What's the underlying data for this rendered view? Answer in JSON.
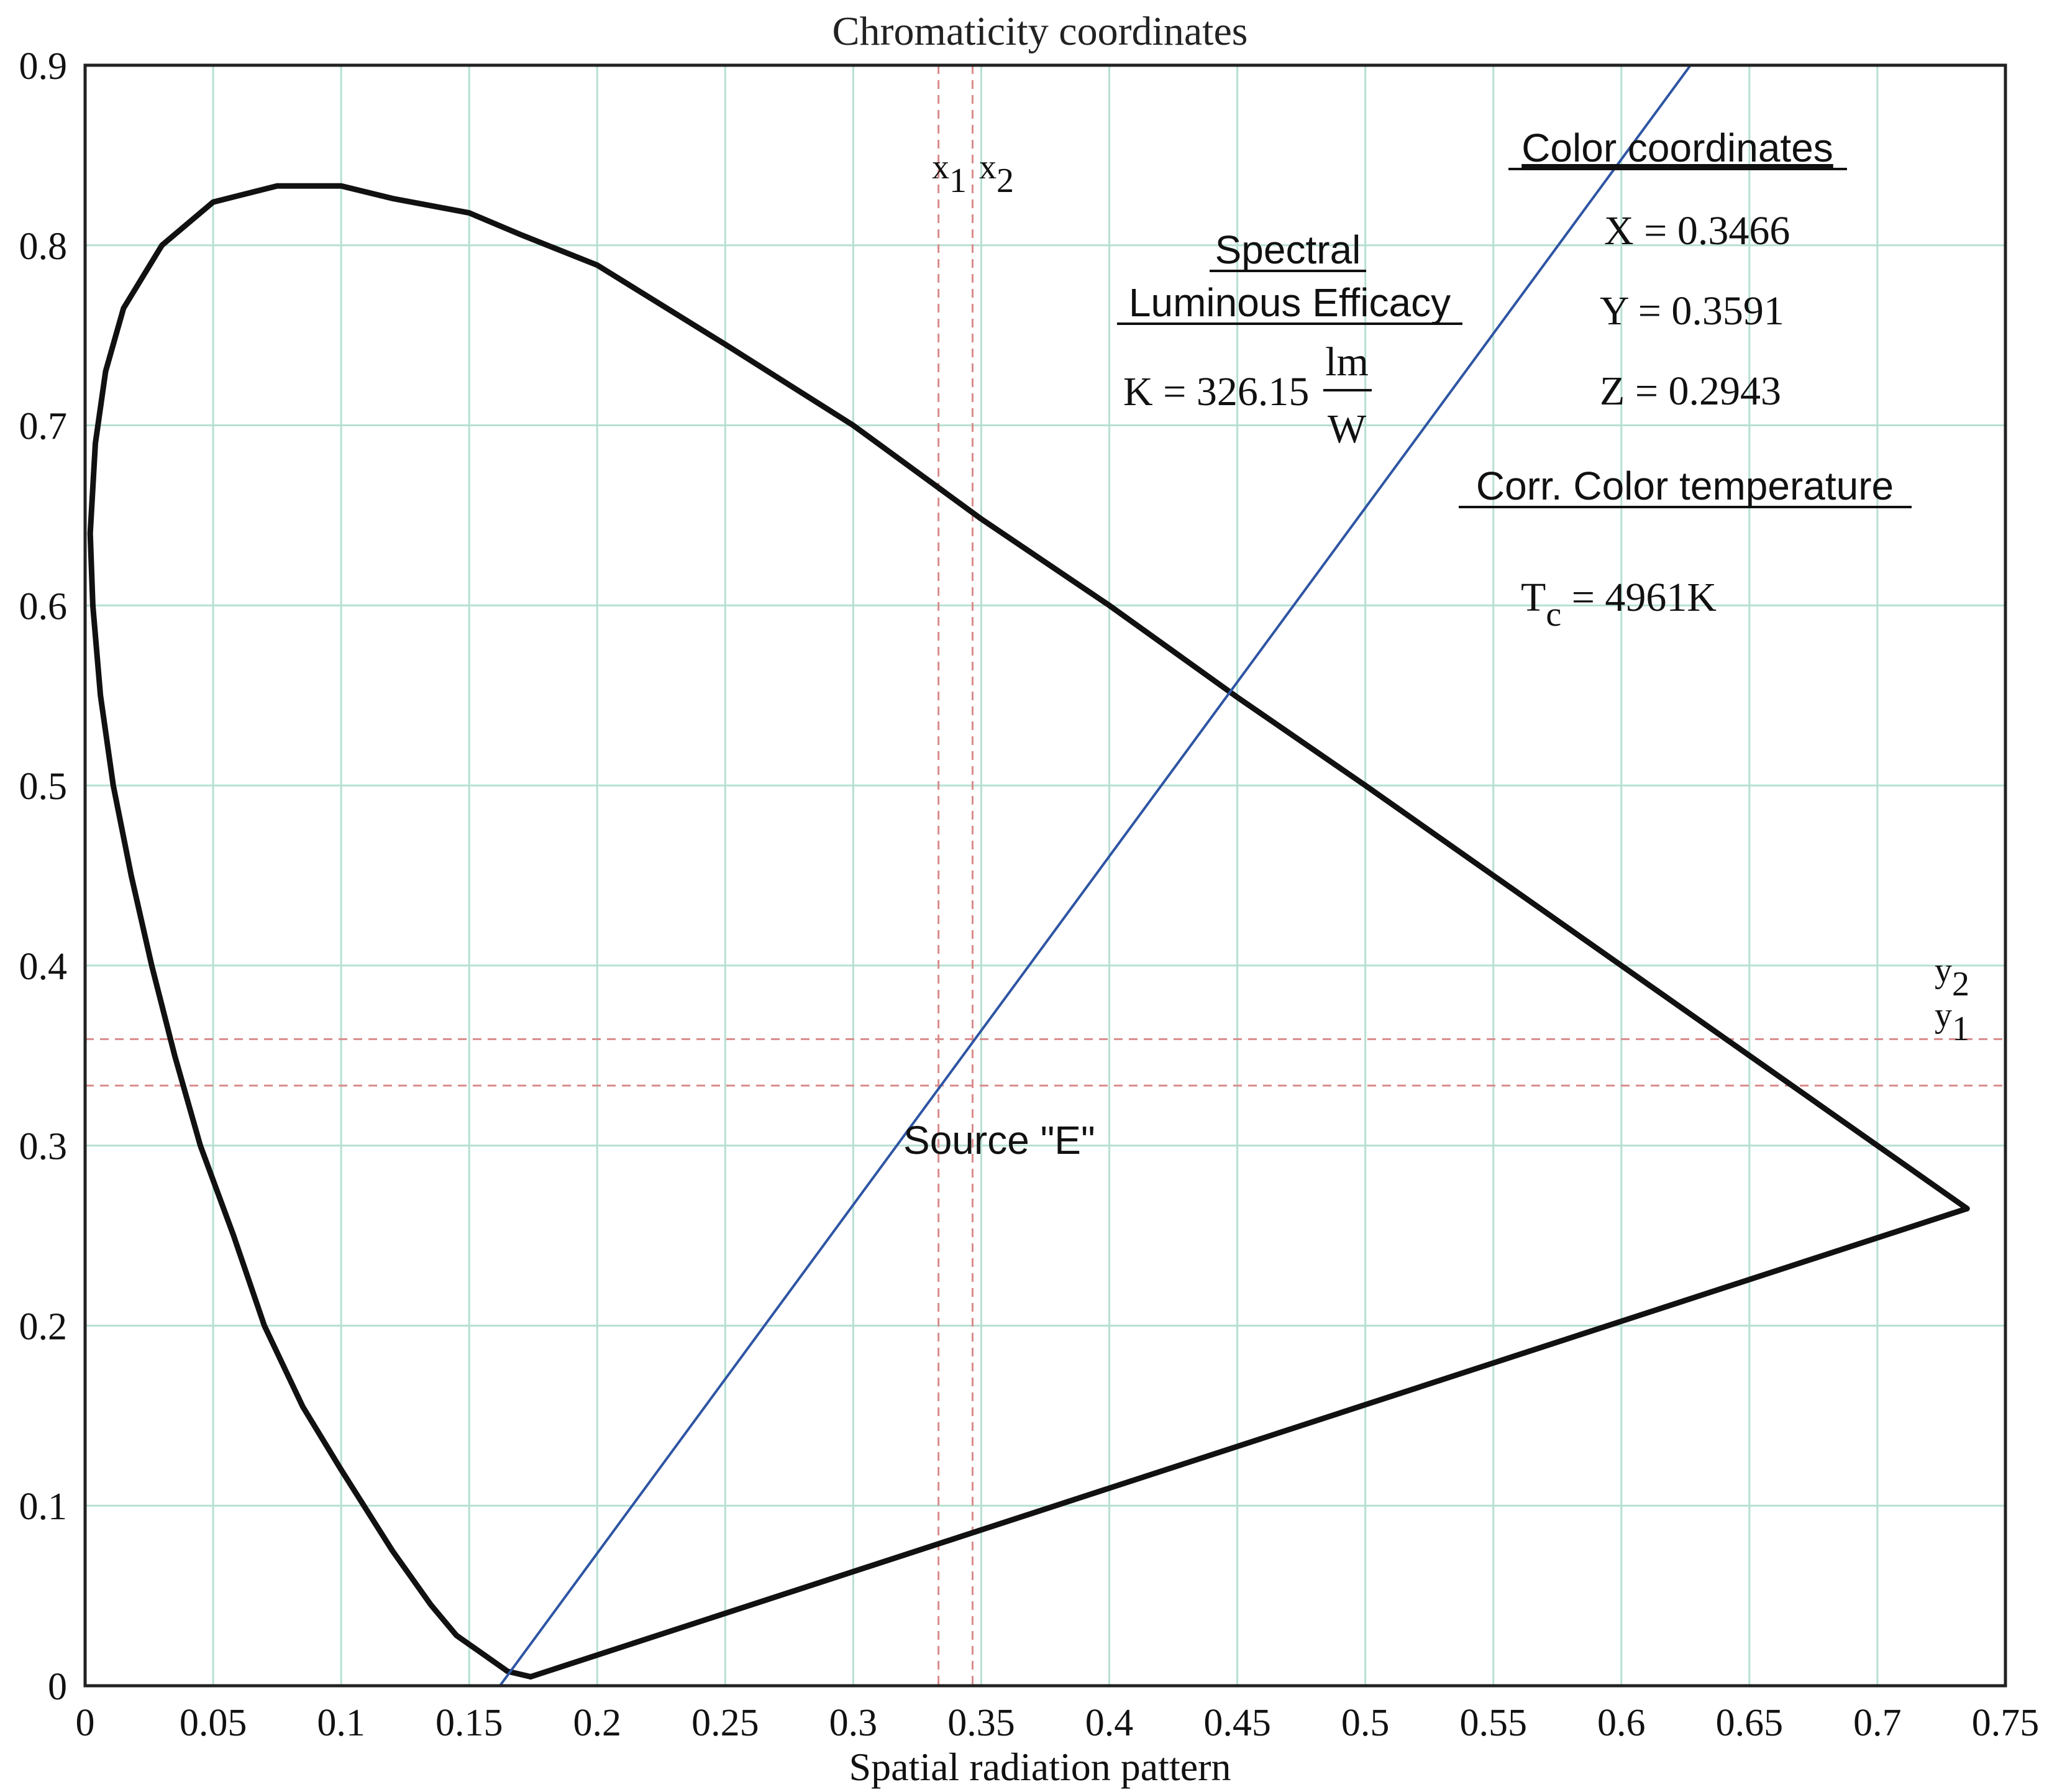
{
  "chart_data": {
    "type": "line",
    "title": "Chromaticity coordinates",
    "xlabel": "Spatial radiation pattern",
    "ylabel": "",
    "xlim": [
      0,
      0.75
    ],
    "ylim": [
      0,
      0.9
    ],
    "x_ticks": [
      "0",
      "0.05",
      "0.1",
      "0.15",
      "0.2",
      "0.25",
      "0.3",
      "0.35",
      "0.4",
      "0.45",
      "0.5",
      "0.55",
      "0.6",
      "0.65",
      "0.7",
      "0.75"
    ],
    "y_ticks": [
      "0",
      "0.1",
      "0.2",
      "0.3",
      "0.4",
      "0.5",
      "0.6",
      "0.7",
      "0.8",
      "0.9"
    ],
    "grid": true,
    "grid_color": "#b6e0d2",
    "spectral_locus": [
      [
        0.174,
        0.005
      ],
      [
        0.165,
        0.008
      ],
      [
        0.155,
        0.018
      ],
      [
        0.145,
        0.028
      ],
      [
        0.135,
        0.045
      ],
      [
        0.12,
        0.075
      ],
      [
        0.1,
        0.12
      ],
      [
        0.085,
        0.155
      ],
      [
        0.07,
        0.2
      ],
      [
        0.058,
        0.25
      ],
      [
        0.045,
        0.3
      ],
      [
        0.035,
        0.35
      ],
      [
        0.026,
        0.4
      ],
      [
        0.018,
        0.45
      ],
      [
        0.011,
        0.5
      ],
      [
        0.006,
        0.55
      ],
      [
        0.003,
        0.6
      ],
      [
        0.002,
        0.64
      ],
      [
        0.004,
        0.69
      ],
      [
        0.008,
        0.73
      ],
      [
        0.015,
        0.765
      ],
      [
        0.03,
        0.8
      ],
      [
        0.05,
        0.824
      ],
      [
        0.075,
        0.833
      ],
      [
        0.1,
        0.833
      ],
      [
        0.12,
        0.826
      ],
      [
        0.15,
        0.818
      ],
      [
        0.17,
        0.806
      ],
      [
        0.2,
        0.789
      ],
      [
        0.25,
        0.745
      ],
      [
        0.3,
        0.7
      ],
      [
        0.35,
        0.648
      ],
      [
        0.4,
        0.6
      ],
      [
        0.45,
        0.549
      ],
      [
        0.5,
        0.5
      ],
      [
        0.55,
        0.45
      ],
      [
        0.6,
        0.4
      ],
      [
        0.65,
        0.35
      ],
      [
        0.7,
        0.3
      ],
      [
        0.735,
        0.265
      ]
    ],
    "purple_line": [
      [
        0.735,
        0.265
      ],
      [
        0.174,
        0.005
      ]
    ],
    "isotemperature_line": [
      [
        0.162,
        0.0
      ],
      [
        0.627,
        0.9
      ]
    ],
    "marker_lines": {
      "x1": 0.3333,
      "x2": 0.3466,
      "y1": 0.3333,
      "y2": 0.3591
    },
    "marker_labels": {
      "x1": "x",
      "x1_sub": "1",
      "x2": "x",
      "x2_sub": "2",
      "y1": "y",
      "y1_sub": "1",
      "y2": "y",
      "y2_sub": "2"
    },
    "annotations": {
      "color_coordinates_heading": "Color coordinates",
      "X": "X = 0.3466",
      "Y": "Y = 0.3591",
      "Z": "Z = 0.2943",
      "spectral_heading_1": "Spectral",
      "spectral_heading_2": "Luminous Efficacy",
      "K_prefix": "K = 326.15",
      "K_unit_num": "lm",
      "K_unit_den": "W",
      "cct_heading": "Corr. Color temperature",
      "Tc_T": "T",
      "Tc_sub": "c",
      "Tc_value": " = 4961K",
      "source_label": "Source \"E\""
    },
    "colors": {
      "locus": "#111111",
      "isotemperature_line": "#2e55a4",
      "marker_lines": "#d98b8b",
      "frame": "#222222"
    }
  }
}
